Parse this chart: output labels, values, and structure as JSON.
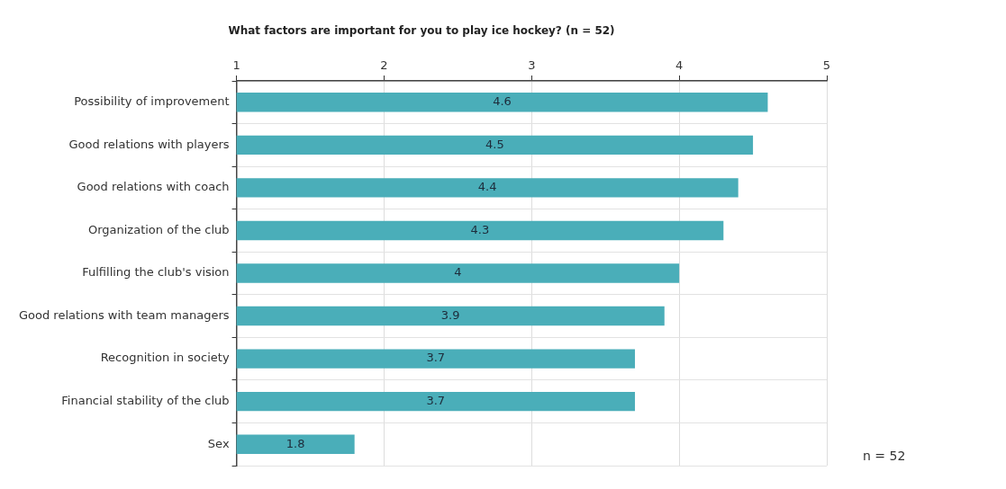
{
  "chart_data": {
    "type": "bar",
    "orientation": "horizontal",
    "title": "What factors are important for you to play ice hockey? (n = 52)",
    "categories": [
      "Possibility of improvement",
      "Good relations with players",
      "Good relations with coach",
      "Organization of the club",
      "Fulfilling the club's vision",
      "Good relations with team managers",
      "Recognition in society",
      "Financial stability of the club",
      "Sex"
    ],
    "values": [
      4.6,
      4.5,
      4.4,
      4.3,
      4,
      3.9,
      3.7,
      3.7,
      1.8
    ],
    "color": "#4aaeb9",
    "xlim": [
      1,
      5
    ],
    "xticks": [
      1,
      2,
      3,
      4,
      5
    ],
    "grid": true,
    "data_labels": true,
    "legend": false,
    "annotations": [
      "n = 52"
    ]
  }
}
